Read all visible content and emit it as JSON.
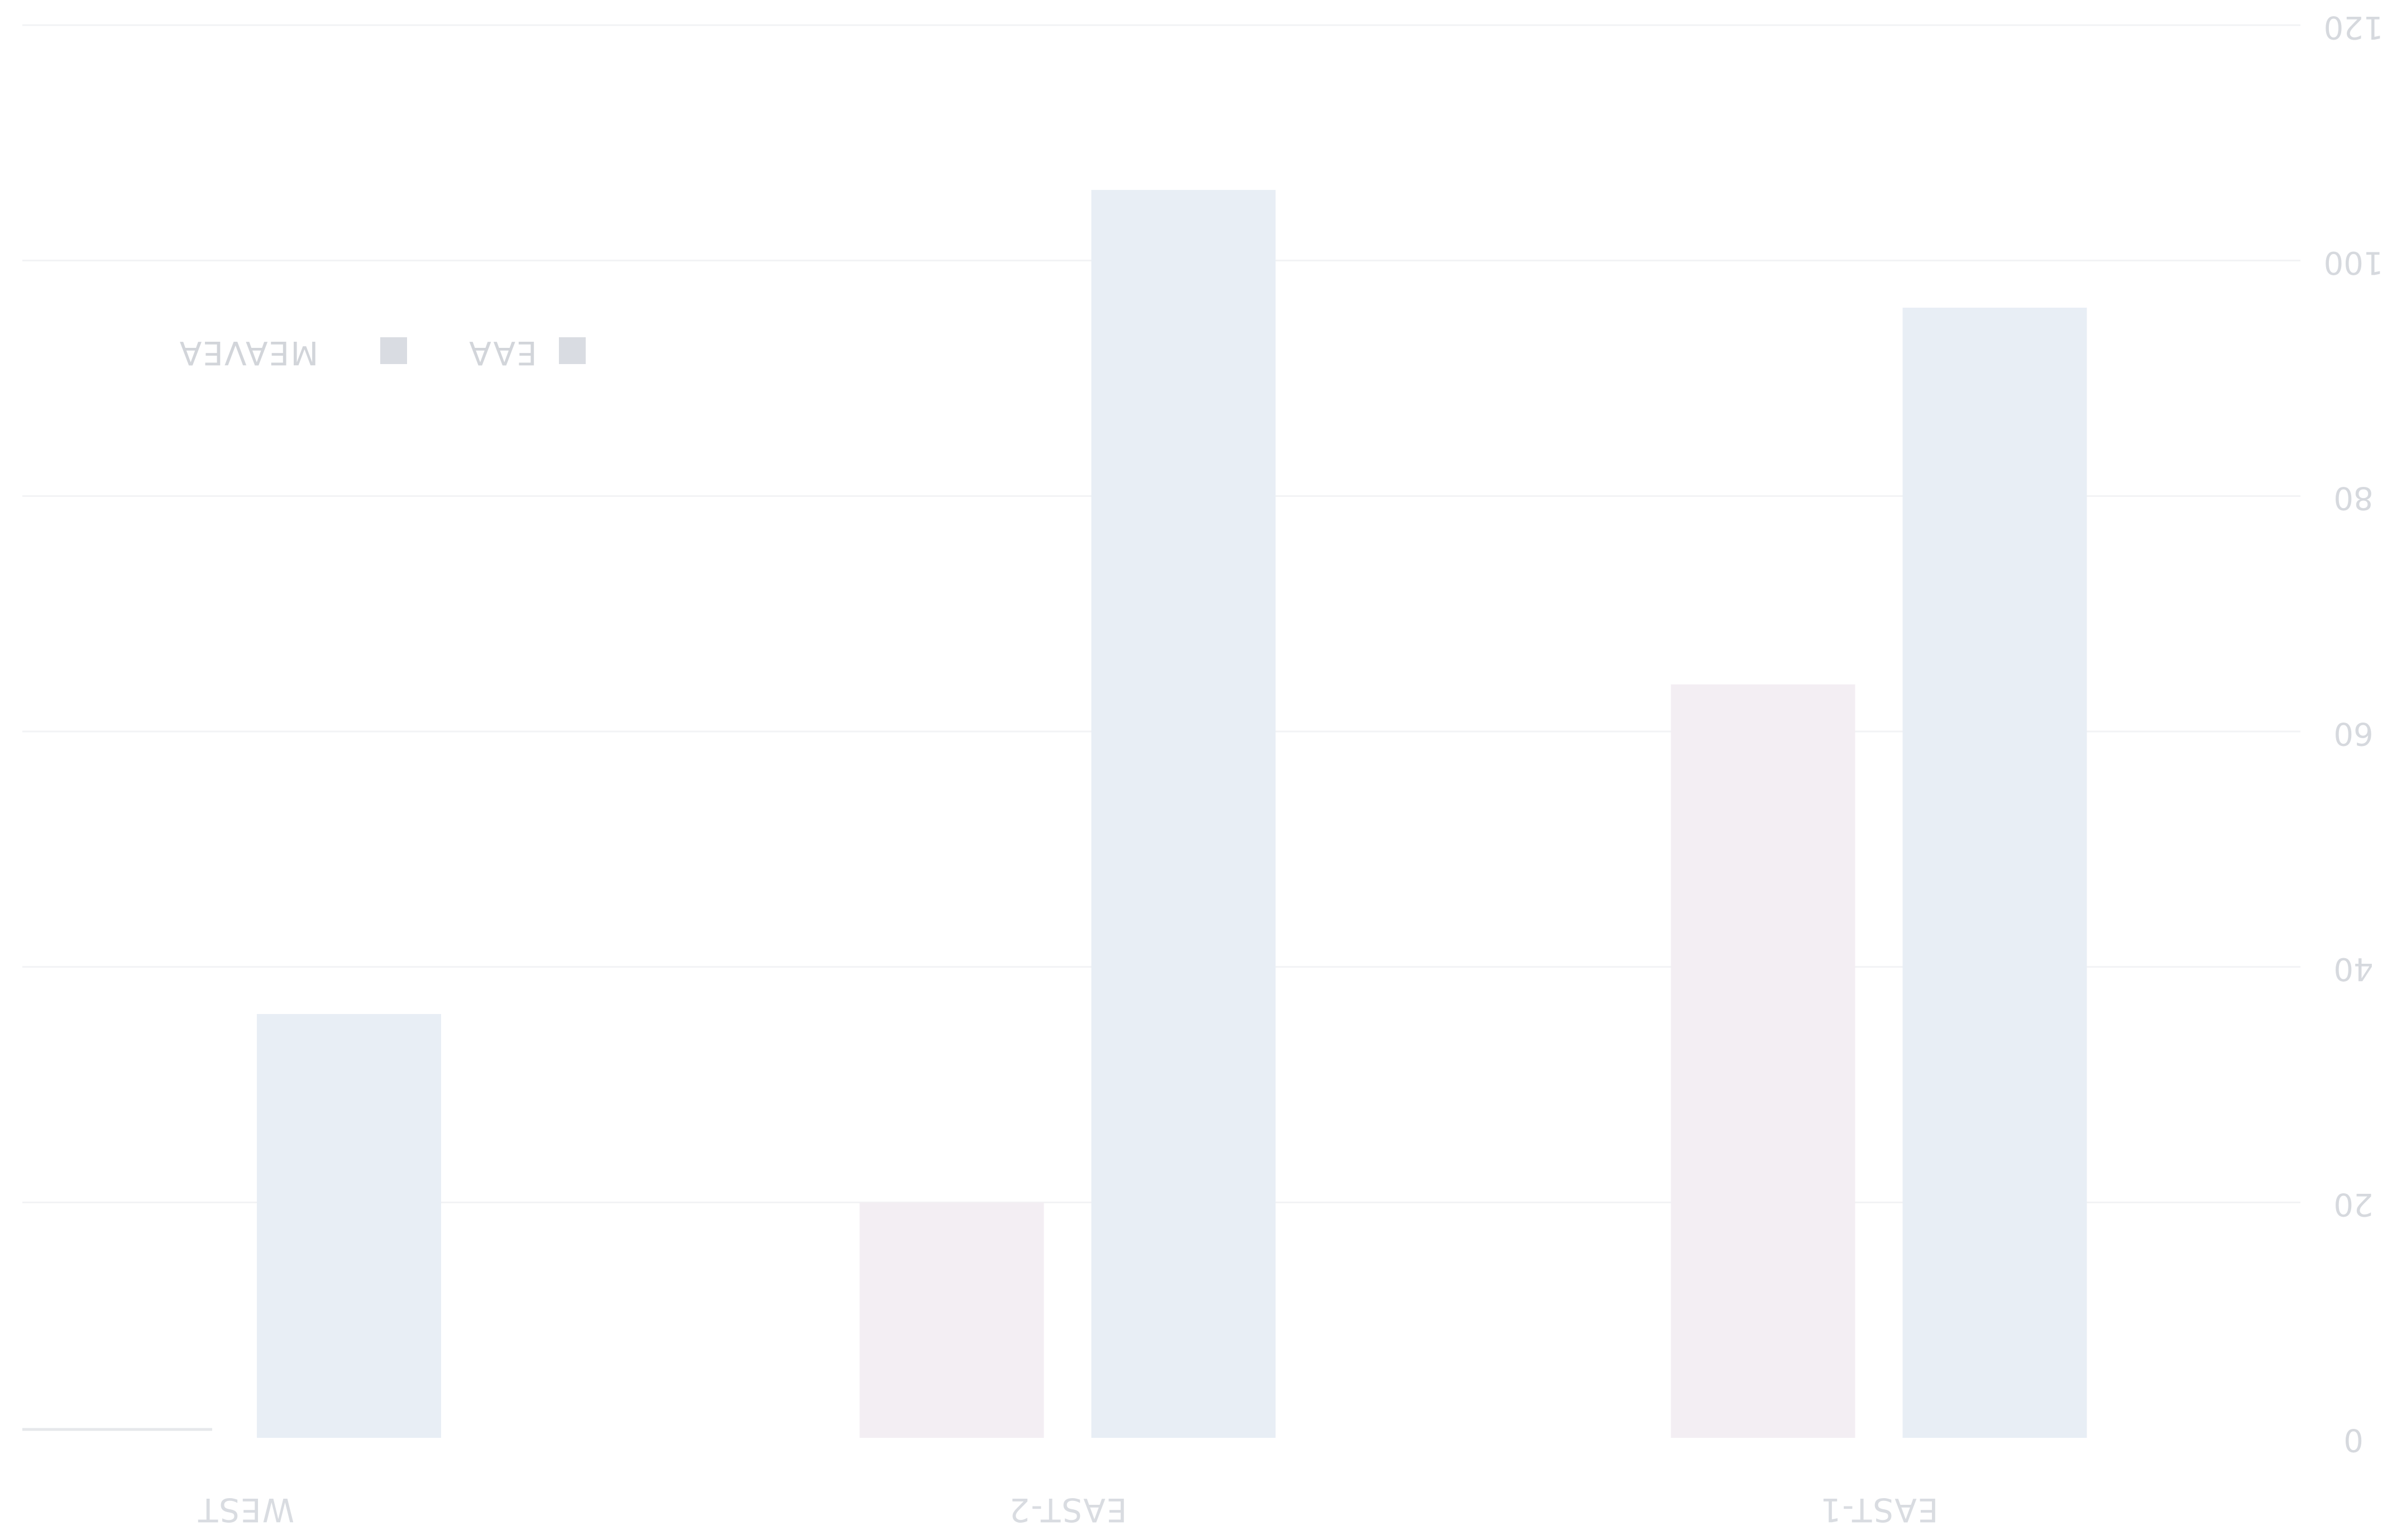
{
  "chart_data": {
    "type": "bar",
    "orientation": "mirrored",
    "categories": [
      "EAST-1",
      "EAST-2",
      "WEST"
    ],
    "series": [
      {
        "name": "EAA",
        "values": [
          64,
          20,
          0
        ],
        "color": "#f3eef3"
      },
      {
        "name": "MEAVEA",
        "values": [
          96,
          106,
          36
        ],
        "color": "#e8eef5"
      }
    ],
    "yaxis": {
      "ticks": [
        0,
        20,
        40,
        60,
        80,
        100,
        120
      ],
      "range": [
        0,
        120
      ],
      "position": "right"
    },
    "grid": true,
    "legend": "top-left"
  }
}
